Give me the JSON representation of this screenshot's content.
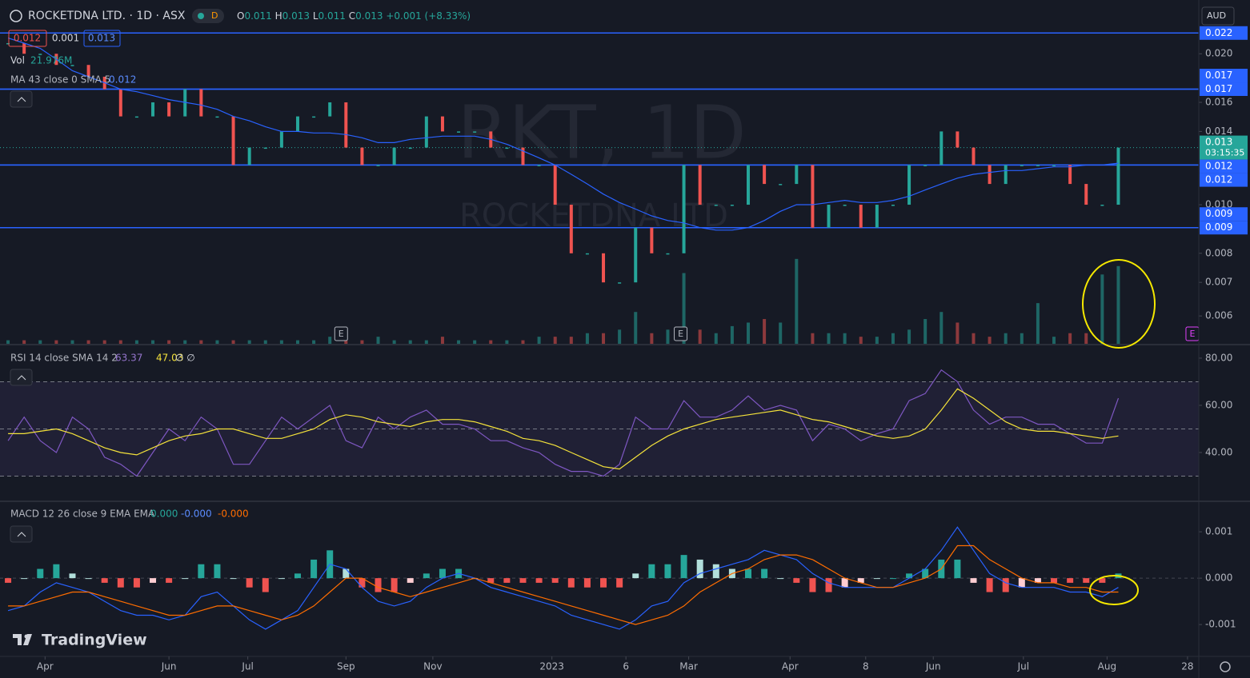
{
  "header": {
    "symbol": "ROCKETDNA LTD. · 1D · ASX",
    "status": "D",
    "ohlc": [
      {
        "label": "O",
        "value": "0.011"
      },
      {
        "label": "H",
        "value": "0.013"
      },
      {
        "label": "L",
        "value": "0.011"
      },
      {
        "label": "C",
        "value": "0.013"
      }
    ],
    "change": "+0.001 (+8.33%)",
    "bid": "0.012",
    "spread": "0.001",
    "ask": "0.013",
    "currency": "AUD",
    "logo": "TradingView"
  },
  "chart_data": [
    {
      "type": "candlestick",
      "title": "RKT, 1D",
      "subtitle": "ROCKETDNA LTD",
      "log_scale": true,
      "xlim": [
        -0.5,
        74
      ],
      "ylim": [
        0.00528,
        0.0256
      ],
      "xticks": [
        {
          "value": 2.3,
          "label": "Apr"
        },
        {
          "value": 10.0,
          "label": "Jun"
        },
        {
          "value": 14.9,
          "label": "Jul"
        },
        {
          "value": 21.0,
          "label": "Sep"
        },
        {
          "value": 26.4,
          "label": "Nov"
        },
        {
          "value": 33.8,
          "label": "2023"
        },
        {
          "value": 38.4,
          "label": "6"
        },
        {
          "value": 42.3,
          "label": "Mar"
        },
        {
          "value": 48.6,
          "label": "Apr"
        },
        {
          "value": 53.3,
          "label": "8"
        },
        {
          "value": 57.5,
          "label": "Jun"
        },
        {
          "value": 63.1,
          "label": "Jul"
        },
        {
          "value": 68.3,
          "label": "Aug"
        },
        {
          "value": 73.3,
          "label": "28"
        }
      ],
      "yticks": [
        {
          "value": 0.02,
          "label": "0.020"
        },
        0.016,
        0.014,
        {
          "value": 0.01,
          "label": "0.010"
        },
        0.008,
        0.007,
        0.006
      ],
      "up_color": "#26a69a",
      "down_color": "#ef5350",
      "closes": [
        0.021,
        0.02,
        0.02,
        0.019,
        0.019,
        0.018,
        0.017,
        0.015,
        0.015,
        0.016,
        0.015,
        0.017,
        0.015,
        0.015,
        0.012,
        0.013,
        0.013,
        0.014,
        0.015,
        0.015,
        0.016,
        0.013,
        0.012,
        0.012,
        0.013,
        0.013,
        0.015,
        0.014,
        0.014,
        0.014,
        0.013,
        0.013,
        0.012,
        0.012,
        0.01,
        0.008,
        0.008,
        0.007,
        0.007,
        0.009,
        0.008,
        0.008,
        0.012,
        0.01,
        0.01,
        0.01,
        0.012,
        0.011,
        0.011,
        0.012,
        0.009,
        0.01,
        0.01,
        0.009,
        0.01,
        0.01,
        0.012,
        0.012,
        0.014,
        0.013,
        0.012,
        0.011,
        0.012,
        0.012,
        0.012,
        0.012,
        0.011,
        0.01,
        0.01,
        0.013
      ],
      "series": [
        {
          "name": "MA 43 close 0 SMA 5",
          "value_label": "0.012",
          "color": "#2962ff",
          "values": [
            0.0215,
            0.021,
            0.0205,
            0.0195,
            0.0185,
            0.018,
            0.0175,
            0.017,
            0.0168,
            0.0165,
            0.0162,
            0.016,
            0.0158,
            0.0155,
            0.015,
            0.0147,
            0.0143,
            0.014,
            0.014,
            0.0139,
            0.0139,
            0.0138,
            0.0136,
            0.0133,
            0.0133,
            0.0135,
            0.0136,
            0.0137,
            0.0137,
            0.0137,
            0.0135,
            0.0132,
            0.0128,
            0.0124,
            0.012,
            0.0115,
            0.011,
            0.0105,
            0.0101,
            0.0098,
            0.0095,
            0.0093,
            0.0092,
            0.009,
            0.0089,
            0.0089,
            0.009,
            0.0093,
            0.0097,
            0.01,
            0.01,
            0.0101,
            0.0102,
            0.0101,
            0.0101,
            0.0102,
            0.0104,
            0.0107,
            0.011,
            0.0113,
            0.0115,
            0.0116,
            0.0117,
            0.0117,
            0.0118,
            0.0119,
            0.0119,
            0.012,
            0.012,
            0.0121
          ]
        }
      ],
      "volume": {
        "name": "Vol",
        "label": "21.976M",
        "ylim": [
          0,
          26
        ],
        "values": [
          1,
          1,
          1,
          1,
          1,
          1,
          1,
          1,
          1,
          1,
          1,
          1,
          1,
          1,
          1,
          1,
          1,
          1,
          1,
          1,
          2,
          1,
          1,
          2,
          1,
          1,
          1,
          2,
          1,
          1,
          1,
          1,
          1,
          2,
          2,
          2,
          3,
          3,
          4,
          9,
          3,
          4,
          20,
          4,
          3,
          5,
          6,
          7,
          6,
          24,
          3,
          3,
          3,
          2,
          2,
          3,
          4,
          7,
          9,
          6,
          3,
          2,
          3,
          3,
          11.5,
          2,
          3,
          3,
          19.6,
          21.976
        ]
      },
      "levels": [
        0.022,
        0.017,
        0.017,
        0.012,
        0.012,
        0.009,
        0.009
      ],
      "level_color": "#2962ff",
      "last": {
        "value": 0.013,
        "countdown": "03:15:35",
        "color": "#26a69a"
      },
      "events": [
        {
          "value": 20.7,
          "label": "E",
          "color": "#b2b5be"
        },
        {
          "value": 41.8,
          "label": "E",
          "color": "#b2b5be"
        },
        {
          "value": 73.6,
          "label": "E",
          "color": "#e040fb"
        }
      ]
    },
    {
      "type": "rsi",
      "title": "RSI 14 close SMA 14 2",
      "ylim": [
        20,
        85.4
      ],
      "yticks": [
        {
          "value": 80,
          "label": "80.00"
        },
        {
          "value": 60,
          "label": "60.00"
        },
        {
          "value": 40,
          "label": "40.00"
        }
      ],
      "levels": [
        70,
        50,
        30
      ],
      "extra_label": "∅ ∅",
      "series": [
        {
          "value_label": "63.37",
          "color": "#7e57c2",
          "values": [
            45,
            55,
            45,
            40,
            55,
            50,
            38,
            35,
            30,
            40,
            50,
            45,
            55,
            50,
            35,
            35,
            45,
            55,
            50,
            55,
            60,
            45,
            42,
            55,
            50,
            55,
            58,
            52,
            52,
            50,
            45,
            45,
            42,
            40,
            35,
            32,
            32,
            30,
            35,
            55,
            50,
            50,
            62,
            55,
            55,
            58,
            64,
            58,
            60,
            58,
            45,
            52,
            50,
            45,
            48,
            50,
            62,
            65,
            75,
            70,
            58,
            52,
            55,
            55,
            52,
            52,
            48,
            44,
            44,
            63
          ]
        },
        {
          "value_label": "47.03",
          "color": "#f5e33b",
          "values": [
            48,
            48,
            49,
            50,
            48,
            45,
            42,
            40,
            39,
            42,
            45,
            47,
            48,
            50,
            50,
            48,
            46,
            46,
            48,
            50,
            54,
            56,
            55,
            53,
            52,
            51,
            53,
            54,
            54,
            53,
            51,
            49,
            46,
            45,
            43,
            40,
            37,
            34,
            33,
            38,
            43,
            47,
            50,
            52,
            54,
            55,
            56,
            57,
            58,
            56,
            54,
            53,
            51,
            49,
            47,
            46,
            47,
            50,
            58,
            67,
            63,
            58,
            53,
            50,
            49,
            49,
            48,
            47,
            46,
            47
          ]
        }
      ]
    },
    {
      "type": "macd",
      "title": "MACD 12 26 close 9 EMA EMA",
      "ylim": [
        -0.00167,
        0.00164
      ],
      "yticks": [
        0.001,
        {
          "value": 0,
          "label": "0.000"
        },
        -0.001
      ],
      "histogram": {
        "value_label": "0.000",
        "up_color": "#26a69a",
        "down_color": "#ef5350",
        "values": [
          -0.0001,
          0,
          0.0002,
          0.0003,
          0.0001,
          0,
          -0.0001,
          -0.0002,
          -0.0002,
          -0.0001,
          -0.0001,
          0,
          0.0003,
          0.0003,
          0,
          -0.0002,
          -0.0003,
          0,
          0.0001,
          0.0004,
          0.0006,
          0.0002,
          -0.0002,
          -0.0003,
          -0.0003,
          -0.0001,
          0.0001,
          0.0002,
          0.0002,
          0,
          -0.0001,
          -0.0001,
          -0.0001,
          -0.0001,
          -0.0001,
          -0.0002,
          -0.0002,
          -0.0002,
          -0.0002,
          0.0001,
          0.0003,
          0.0003,
          0.0005,
          0.0004,
          0.0003,
          0.0002,
          0.0002,
          0.0002,
          0,
          -0.0001,
          -0.0003,
          -0.0003,
          -0.0002,
          -0.0001,
          0,
          0,
          0.0001,
          0.0002,
          0.0004,
          0.0004,
          -0.0001,
          -0.0003,
          -0.0003,
          -0.0002,
          -0.0001,
          -0.0001,
          -0.0001,
          -0.0001,
          -0.0001,
          0.0001
        ]
      },
      "series": [
        {
          "value_label": "-0.000",
          "color": "#2962ff",
          "values": [
            -0.0007,
            -0.0006,
            -0.0003,
            -0.0001,
            -0.0002,
            -0.0003,
            -0.0005,
            -0.0007,
            -0.0008,
            -0.0008,
            -0.0009,
            -0.0008,
            -0.0004,
            -0.0003,
            -0.0006,
            -0.0009,
            -0.0011,
            -0.0009,
            -0.0007,
            -0.0002,
            0.0003,
            0.0002,
            -0.0002,
            -0.0005,
            -0.0006,
            -0.0005,
            -0.0002,
            0,
            0.0001,
            0,
            -0.0002,
            -0.0003,
            -0.0004,
            -0.0005,
            -0.0006,
            -0.0008,
            -0.0009,
            -0.001,
            -0.0011,
            -0.0009,
            -0.0006,
            -0.0005,
            -0.0001,
            0.0001,
            0.0002,
            0.0003,
            0.0004,
            0.0006,
            0.0005,
            0.0004,
            0.0001,
            -0.0001,
            -0.0002,
            -0.0002,
            -0.0002,
            -0.0002,
            0,
            0.0002,
            0.0006,
            0.0011,
            0.0006,
            0.0001,
            -0.0001,
            -0.0002,
            -0.0002,
            -0.0002,
            -0.0003,
            -0.0003,
            -0.0004,
            -0.0002
          ]
        },
        {
          "value_label": "-0.000",
          "color": "#ff6d00",
          "values": [
            -0.0006,
            -0.0006,
            -0.0005,
            -0.0004,
            -0.0003,
            -0.0003,
            -0.0004,
            -0.0005,
            -0.0006,
            -0.0007,
            -0.0008,
            -0.0008,
            -0.0007,
            -0.0006,
            -0.0006,
            -0.0007,
            -0.0008,
            -0.0009,
            -0.0008,
            -0.0006,
            -0.0003,
            0,
            0,
            -0.0002,
            -0.0003,
            -0.0004,
            -0.0003,
            -0.0002,
            -0.0001,
            0,
            -0.0001,
            -0.0002,
            -0.0003,
            -0.0004,
            -0.0005,
            -0.0006,
            -0.0007,
            -0.0008,
            -0.0009,
            -0.001,
            -0.0009,
            -0.0008,
            -0.0006,
            -0.0003,
            -0.0001,
            0.0001,
            0.0002,
            0.0004,
            0.0005,
            0.0005,
            0.0004,
            0.0002,
            0,
            -0.0001,
            -0.0002,
            -0.0002,
            -0.0001,
            0,
            0.0002,
            0.0007,
            0.0007,
            0.0004,
            0.0002,
            0,
            -0.0001,
            -0.0001,
            -0.0002,
            -0.0002,
            -0.0003,
            -0.0003
          ]
        }
      ]
    }
  ]
}
